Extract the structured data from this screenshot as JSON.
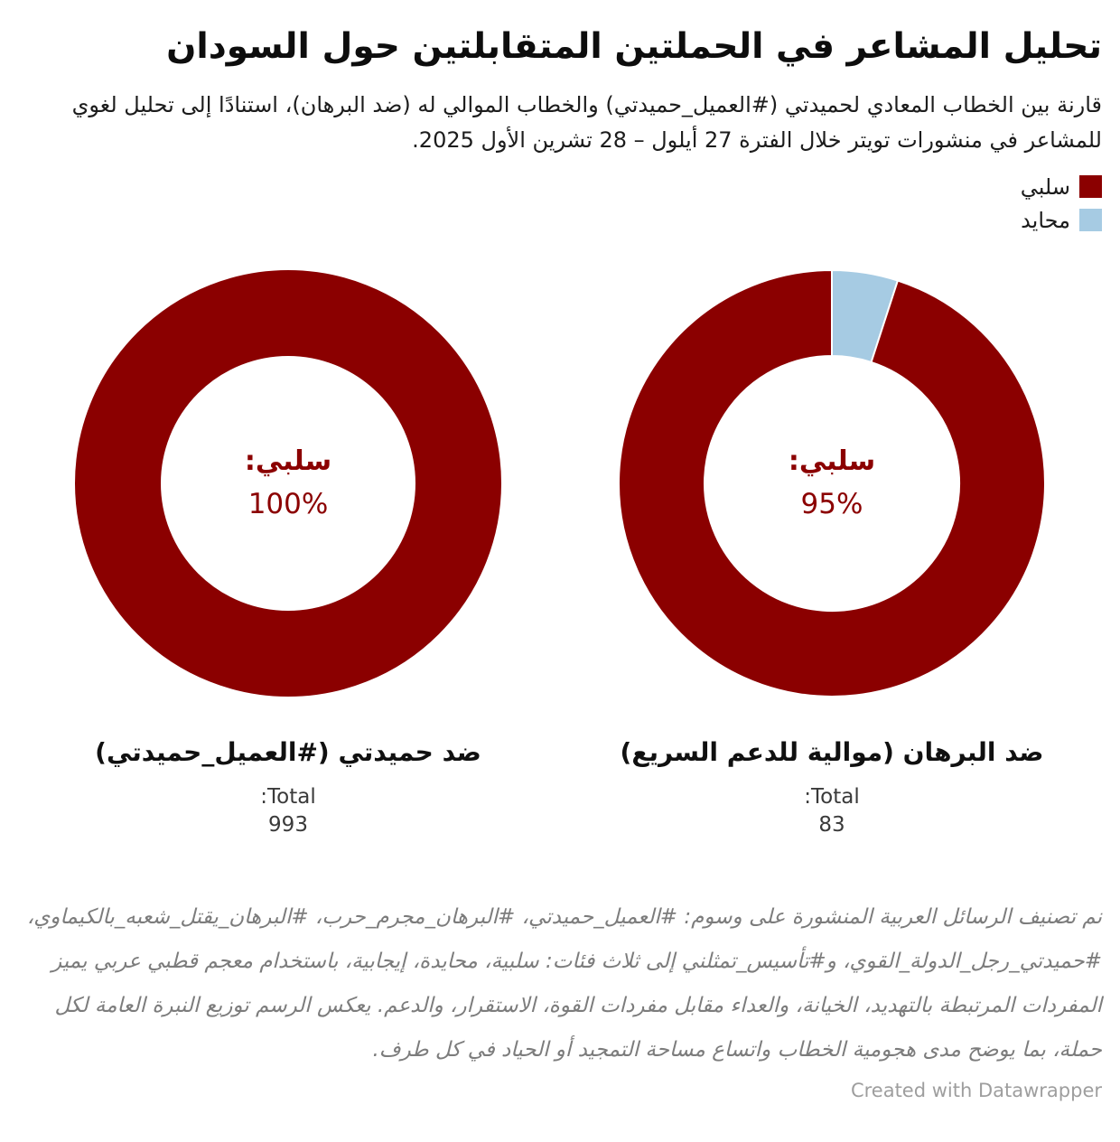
{
  "header": {
    "title": "تحليل المشاعر في الحملتين المتقابلتين حول السودان",
    "subtitle": "قارنة بين الخطاب المعادي لحميدتي (#العميل_حميدتي) والخطاب الموالي له (ضد البرهان)، استنادًا إلى تحليل لغوي للمشاعر في منشورات تويتر خلال الفترة 27 أيلول – 28 تشرين الأول 2025."
  },
  "legend": {
    "items": [
      {
        "key": "negative",
        "label": "سلبي",
        "color": "#8B0000"
      },
      {
        "key": "neutral",
        "label": "محايد",
        "color": "#A6CBE3"
      }
    ]
  },
  "chart_data": [
    {
      "type": "pie",
      "variant": "donut",
      "label": "ضد حميدتي (#العميل_حميدتي)",
      "total_label": "Total:",
      "total": "993",
      "center_label": "سلبي:",
      "center_value": "100%",
      "slices": [
        {
          "key": "negative",
          "name": "سلبي",
          "value": 100,
          "color": "#8B0000"
        }
      ]
    },
    {
      "type": "pie",
      "variant": "donut",
      "label": "ضد البرهان (موالية للدعم السريع)",
      "total_label": "Total:",
      "total": "83",
      "center_label": "سلبي:",
      "center_value": "95%",
      "slices": [
        {
          "key": "neutral",
          "name": "محايد",
          "value": 5,
          "color": "#A6CBE3"
        },
        {
          "key": "negative",
          "name": "سلبي",
          "value": 95,
          "color": "#8B0000"
        }
      ]
    }
  ],
  "footer": {
    "note": "نم تصنيف الرسائل العربية المنشورة على وسوم: #العميل_حميدتي، #البرهان_مجرم_حرب، #البرهان_يقتل_شعبه_بالكيماوي، #حميدتي_رجل_الدولة_القوي، و#تأسيس_تمثلني إلى ثلاث فئات: سلبية، محايدة، إيجابية، باستخدام معجم قطبي عربي يميز المفردات المرتبطة بالتهديد، الخيانة، والعداء مقابل مفردات القوة، الاستقرار، والدعم. يعكس الرسم توزيع النبرة العامة لكل حملة، بما يوضح مدى هجومية الخطاب واتساع مساحة التمجيد أو الحياد في كل طرف.",
    "credit": "Created with Datawrapper"
  },
  "colors": {
    "negative": "#8B0000",
    "neutral": "#A6CBE3",
    "center_text": "#8B0000"
  }
}
